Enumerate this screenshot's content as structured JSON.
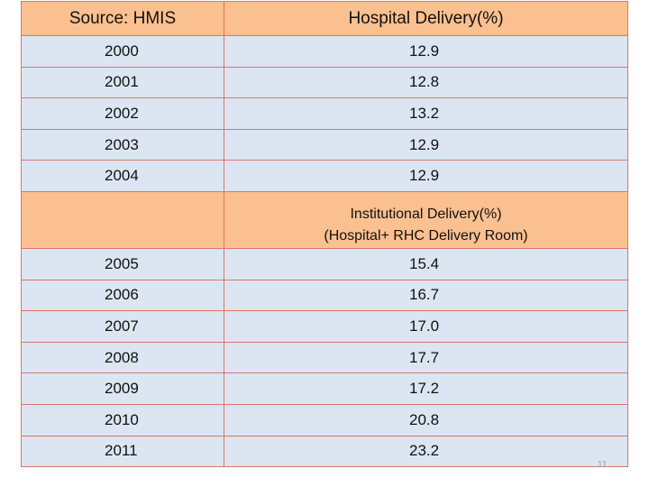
{
  "table": {
    "header": {
      "col1": "Source: HMIS",
      "col2": "Hospital Delivery(%)"
    },
    "rows_hospital": [
      {
        "year": "2000",
        "value": "12.9"
      },
      {
        "year": "2001",
        "value": "12.8"
      },
      {
        "year": "2002",
        "value": "13.2"
      },
      {
        "year": "2003",
        "value": "12.9"
      },
      {
        "year": "2004",
        "value": "12.9"
      }
    ],
    "subheader": {
      "col1": "",
      "line1": "Institutional Delivery(%)",
      "line2": "(Hospital+ RHC Delivery Room)"
    },
    "rows_institutional": [
      {
        "year": "2005",
        "value": "15.4"
      },
      {
        "year": "2006",
        "value": "16.7"
      },
      {
        "year": "2007",
        "value": "17.0"
      },
      {
        "year": "2008",
        "value": "17.7"
      },
      {
        "year": "2009",
        "value": "17.2"
      },
      {
        "year": "2010",
        "value": "20.8"
      },
      {
        "year": "2011",
        "value": "23.2"
      }
    ]
  },
  "footer": {
    "page_number": "11"
  },
  "colors": {
    "header_fill": "#fac090",
    "row_fill": "#dce6f2",
    "border": "#d9756b"
  }
}
